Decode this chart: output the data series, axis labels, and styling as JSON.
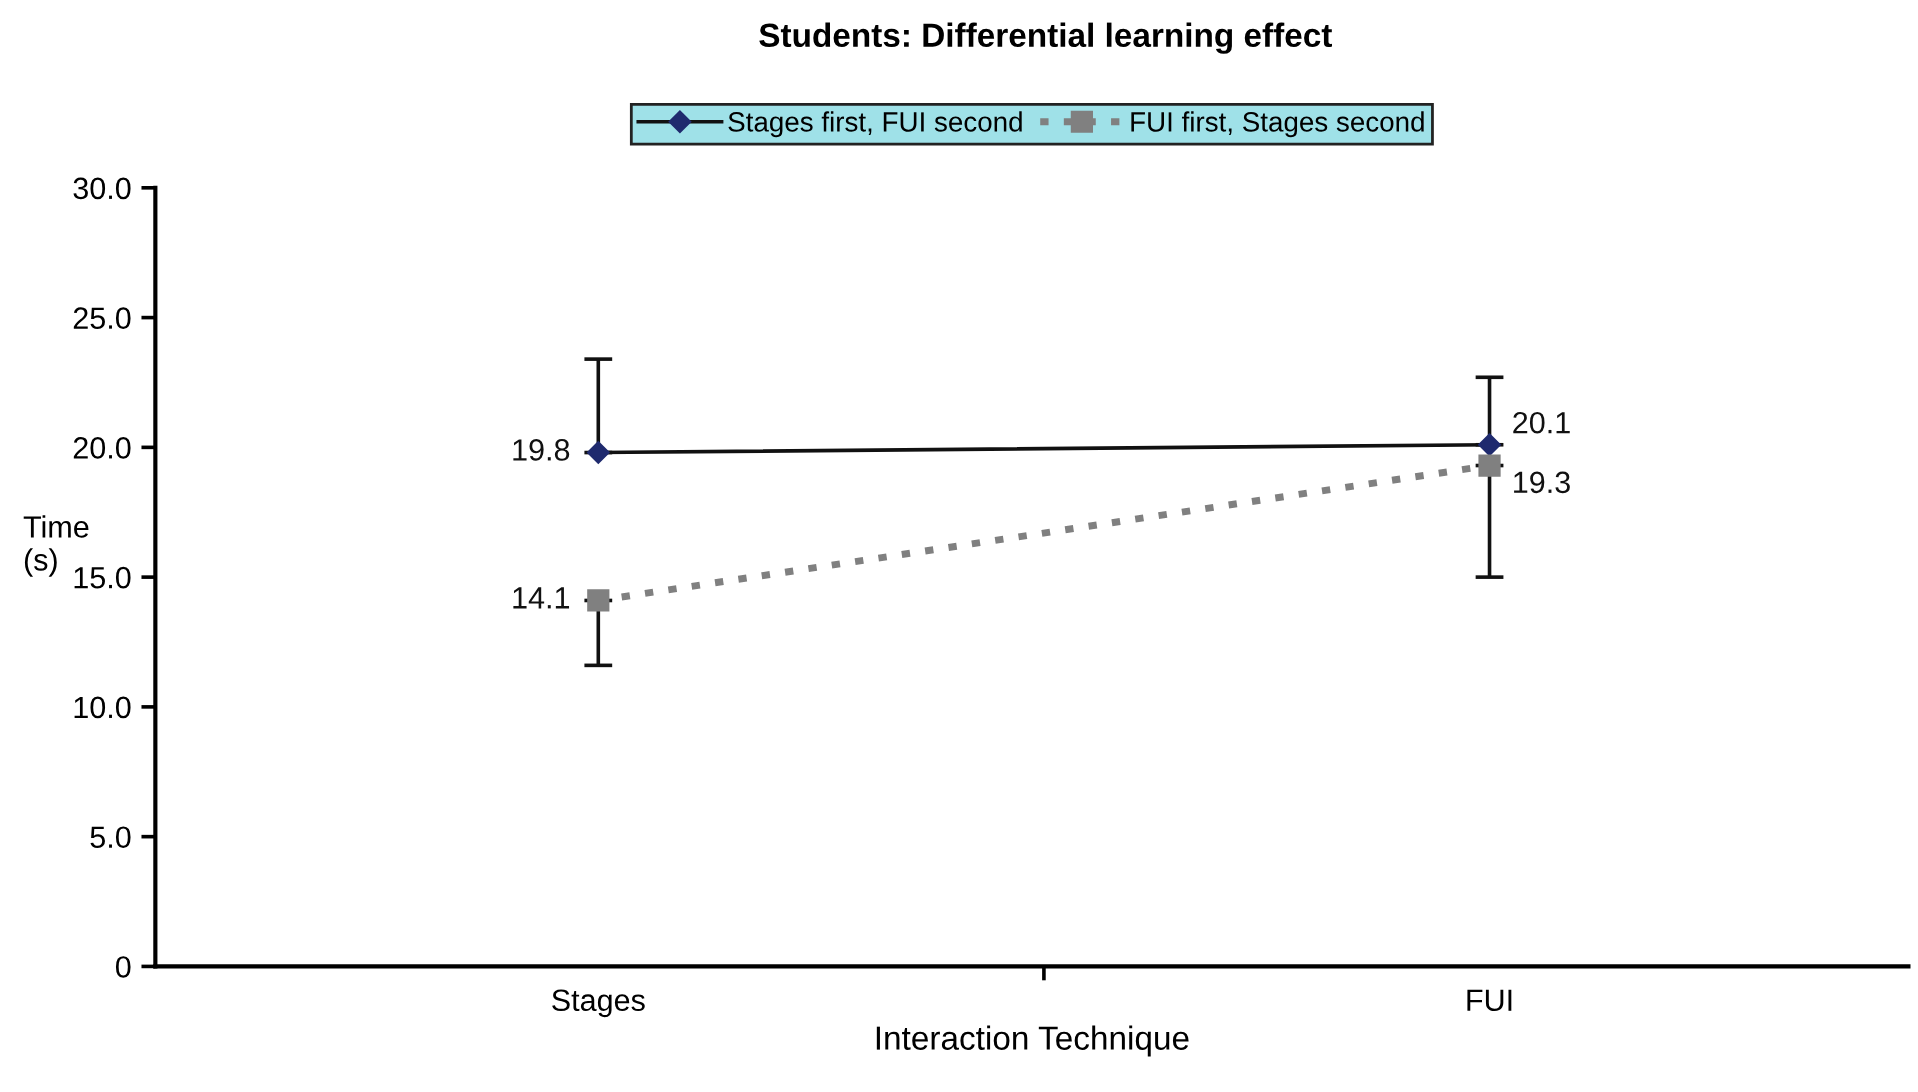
{
  "chart_data": {
    "type": "line",
    "title": "Students: Differential learning effect",
    "xlabel": "Interaction Technique",
    "ylabel": "Time (s)",
    "categories": [
      "Stages",
      "FUI"
    ],
    "series": [
      {
        "name": "Stages first, FUI second",
        "color": "#1f2a6e",
        "values": [
          19.8,
          20.1
        ],
        "errors": [
          [
            19.8,
            23.4
          ],
          [
            20.1,
            22.7
          ]
        ],
        "marker": "diamond",
        "line_style": "solid"
      },
      {
        "name": "FUI first, Stages second",
        "color": "#808080",
        "values": [
          14.1,
          19.3
        ],
        "errors": [
          [
            11.6,
            14.1
          ],
          [
            15.0,
            19.3
          ]
        ],
        "marker": "square",
        "line_style": "dotted"
      }
    ],
    "ylim": [
      0,
      30
    ],
    "yticks": [
      0,
      {
        "value": 5,
        "label": "5.0"
      },
      {
        "value": 10,
        "label": "10.0"
      },
      {
        "value": 15,
        "label": "15.0"
      },
      {
        "value": 20,
        "label": "20.0"
      },
      {
        "value": 25,
        "label": "25.0"
      },
      {
        "value": 30,
        "label": "30.0"
      }
    ],
    "data_labels": true,
    "grid": false,
    "legend": "top"
  }
}
